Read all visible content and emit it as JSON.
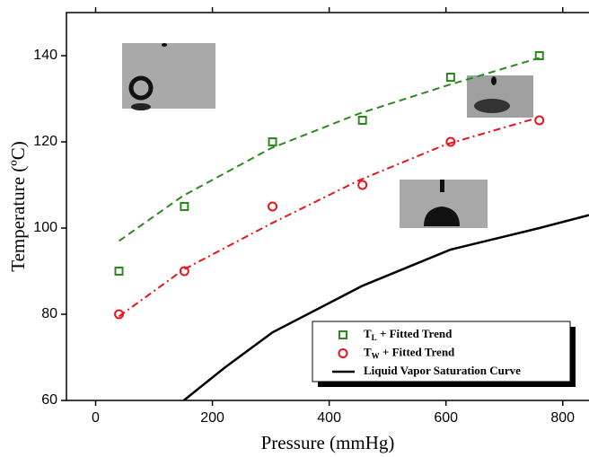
{
  "chart_data": {
    "type": "scatter",
    "xlabel": "Pressure (mmHg)",
    "ylabel": "Temperature (ºC)",
    "xlim": [
      -50,
      845
    ],
    "ylim": [
      60,
      150
    ],
    "xticks": [
      0,
      200,
      400,
      600,
      800
    ],
    "yticks": [
      60,
      80,
      100,
      120,
      140
    ],
    "series": [
      {
        "name": [
          "T",
          "L",
          " + Fitted Trend"
        ],
        "color": "#2a8a1e",
        "marker": "square",
        "dash": "8,5",
        "x": [
          40,
          152,
          303,
          457,
          608,
          760
        ],
        "values": [
          90,
          105,
          120,
          125,
          135,
          140
        ],
        "trend_x": [
          40,
          150,
          300,
          450,
          600,
          760
        ],
        "trend_y": [
          97,
          107.5,
          118.5,
          126.5,
          133,
          139.5
        ]
      },
      {
        "name": [
          "T",
          "W",
          " + Fitted Trend"
        ],
        "color": "#e8141c",
        "marker": "circle",
        "dash": "8,4,2,4",
        "x": [
          40,
          152,
          303,
          457,
          608,
          760
        ],
        "values": [
          80,
          90,
          105,
          110,
          120,
          125
        ],
        "trend_x": [
          40,
          150,
          300,
          450,
          600,
          760
        ],
        "trend_y": [
          79.5,
          90.3,
          101,
          111,
          119.4,
          125.7
        ]
      },
      {
        "name": "Liquid Vapor Saturation Curve",
        "color": "#000000",
        "marker": "line",
        "x": [
          151,
          220,
          303,
          457,
          608,
          760,
          845
        ],
        "values": [
          60,
          67.5,
          75.8,
          86.6,
          95,
          100,
          103
        ]
      }
    ]
  }
}
